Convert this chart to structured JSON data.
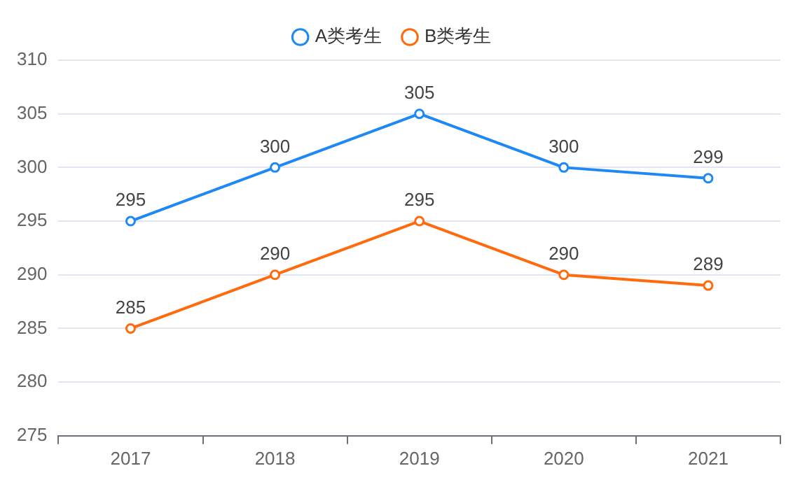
{
  "chart_data": {
    "type": "line",
    "categories": [
      "2017",
      "2018",
      "2019",
      "2020",
      "2021"
    ],
    "series": [
      {
        "name": "A类考生",
        "color": "#1e88f5",
        "values": [
          295,
          300,
          305,
          300,
          299
        ]
      },
      {
        "name": "B类考生",
        "color": "#ff6a0d",
        "values": [
          285,
          290,
          295,
          290,
          289
        ]
      }
    ],
    "ylim": [
      275,
      310
    ],
    "yticks": [
      275,
      280,
      285,
      290,
      295,
      300,
      305,
      310
    ],
    "grid": "y",
    "legend": "top",
    "marker": "circle",
    "line_style": "solid",
    "data_labels": true
  }
}
